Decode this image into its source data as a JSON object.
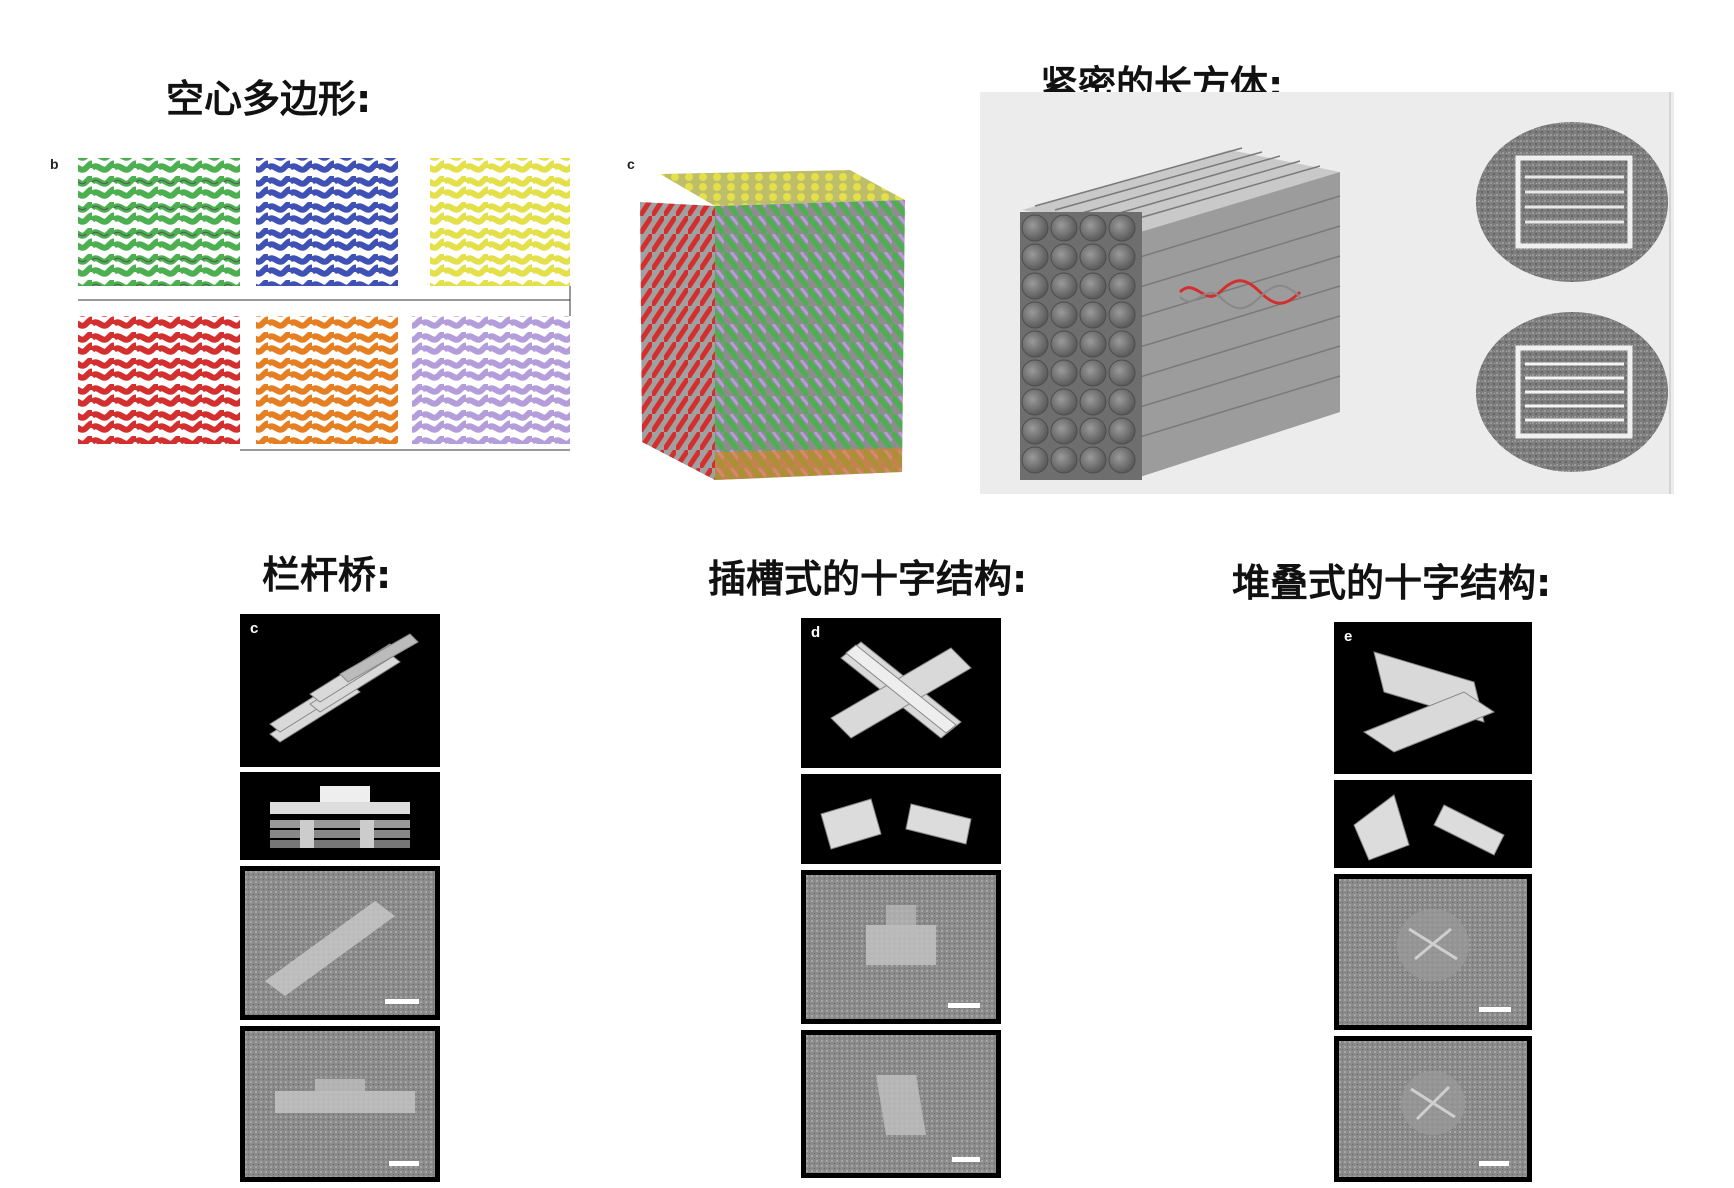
{
  "labels": {
    "hollow_polygon": "空心多边形:",
    "dense_cuboid": "紧密的长方体:",
    "railed_bridge": "栏杆桥:",
    "slotted_cross": "插槽式的十字结构:",
    "stacked_cross": "堆叠式的十字结构:"
  },
  "panel_letters": {
    "b": "b",
    "c_top": "c",
    "c_bottom": "c",
    "d": "d",
    "e": "e"
  },
  "colors": {
    "green": "#4caf50",
    "blue": "#3f51b5",
    "yellow": "#e3e04a",
    "red": "#d32f2f",
    "orange": "#e67e22",
    "purple": "#b39ddb",
    "helix_grey": "#9e9e9e"
  }
}
